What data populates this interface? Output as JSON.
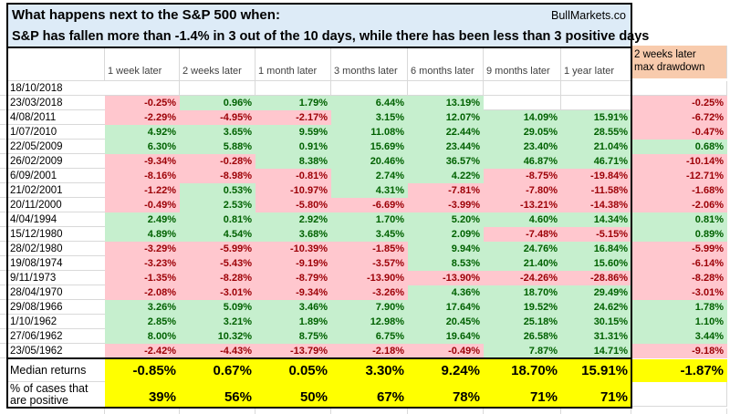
{
  "title": {
    "line1": "What happens next to the S&P 500 when:",
    "watermark": "BullMarkets.co",
    "line2": "S&P has fallen more than -1.4% in 3 out of the 10 days, while there has been less than 3 positive days"
  },
  "columns": [
    "1 week later",
    "2 weeks later",
    "1 month later",
    "3 months later",
    "6 months later",
    "9 months later",
    "1 year later"
  ],
  "drawdown_header": {
    "line1": "2 weeks later",
    "line2": "max drawdown"
  },
  "rows": [
    {
      "date": "18/10/2018",
      "values": [
        "",
        "",
        "",
        "",
        "",
        "",
        ""
      ],
      "drawdown": ""
    },
    {
      "date": "23/03/2018",
      "values": [
        "-0.25%",
        "0.96%",
        "1.79%",
        "6.44%",
        "13.19%",
        "",
        ""
      ],
      "drawdown": "-0.25%"
    },
    {
      "date": "4/08/2011",
      "values": [
        "-2.29%",
        "-4.95%",
        "-2.17%",
        "3.15%",
        "12.07%",
        "14.09%",
        "15.91%"
      ],
      "drawdown": "-6.72%"
    },
    {
      "date": "1/07/2010",
      "values": [
        "4.92%",
        "3.65%",
        "9.59%",
        "11.08%",
        "22.44%",
        "29.05%",
        "28.55%"
      ],
      "drawdown": "-0.47%"
    },
    {
      "date": "22/05/2009",
      "values": [
        "6.30%",
        "5.88%",
        "0.91%",
        "15.69%",
        "23.44%",
        "23.40%",
        "21.04%"
      ],
      "drawdown": "0.68%"
    },
    {
      "date": "26/02/2009",
      "values": [
        "-9.34%",
        "-0.28%",
        "8.38%",
        "20.46%",
        "36.57%",
        "46.87%",
        "46.71%"
      ],
      "drawdown": "-10.14%"
    },
    {
      "date": "6/09/2001",
      "values": [
        "-8.16%",
        "-8.98%",
        "-0.81%",
        "2.74%",
        "4.22%",
        "-8.75%",
        "-19.84%"
      ],
      "drawdown": "-12.71%"
    },
    {
      "date": "21/02/2001",
      "values": [
        "-1.22%",
        "0.53%",
        "-10.97%",
        "4.31%",
        "-7.81%",
        "-7.80%",
        "-11.58%"
      ],
      "drawdown": "-1.68%"
    },
    {
      "date": "20/11/2000",
      "values": [
        "-0.49%",
        "2.53%",
        "-5.80%",
        "-6.69%",
        "-3.99%",
        "-13.21%",
        "-14.38%"
      ],
      "drawdown": "-2.06%"
    },
    {
      "date": "4/04/1994",
      "values": [
        "2.49%",
        "0.81%",
        "2.92%",
        "1.70%",
        "5.20%",
        "4.60%",
        "14.34%"
      ],
      "drawdown": "0.81%"
    },
    {
      "date": "15/12/1980",
      "values": [
        "4.89%",
        "4.54%",
        "3.68%",
        "3.45%",
        "2.09%",
        "-7.48%",
        "-5.15%"
      ],
      "drawdown": "0.89%"
    },
    {
      "date": "28/02/1980",
      "values": [
        "-3.29%",
        "-5.99%",
        "-10.39%",
        "-1.85%",
        "9.94%",
        "24.76%",
        "16.84%"
      ],
      "drawdown": "-5.99%"
    },
    {
      "date": "19/08/1974",
      "values": [
        "-3.23%",
        "-5.43%",
        "-9.19%",
        "-3.57%",
        "8.53%",
        "21.40%",
        "15.60%"
      ],
      "drawdown": "-6.14%"
    },
    {
      "date": "9/11/1973",
      "values": [
        "-1.35%",
        "-8.28%",
        "-8.79%",
        "-13.90%",
        "-13.90%",
        "-24.26%",
        "-28.86%"
      ],
      "drawdown": "-8.28%"
    },
    {
      "date": "28/04/1970",
      "values": [
        "-2.08%",
        "-3.01%",
        "-9.34%",
        "-3.26%",
        "4.36%",
        "18.70%",
        "29.49%"
      ],
      "drawdown": "-3.01%"
    },
    {
      "date": "29/08/1966",
      "values": [
        "3.26%",
        "5.09%",
        "3.46%",
        "7.90%",
        "17.64%",
        "19.52%",
        "24.62%"
      ],
      "drawdown": "1.78%"
    },
    {
      "date": "1/10/1962",
      "values": [
        "2.85%",
        "3.21%",
        "1.89%",
        "12.98%",
        "20.45%",
        "25.18%",
        "30.15%"
      ],
      "drawdown": "1.10%"
    },
    {
      "date": "27/06/1962",
      "values": [
        "8.00%",
        "10.32%",
        "8.75%",
        "6.75%",
        "19.64%",
        "26.58%",
        "31.31%"
      ],
      "drawdown": "3.44%"
    },
    {
      "date": "23/05/1962",
      "values": [
        "-2.42%",
        "-4.43%",
        "-13.79%",
        "-2.18%",
        "-0.49%",
        "7.87%",
        "14.71%"
      ],
      "drawdown": "-9.18%"
    }
  ],
  "summary": {
    "median": {
      "label": "Median returns",
      "values": [
        "-0.85%",
        "0.67%",
        "0.05%",
        "3.30%",
        "9.24%",
        "18.70%",
        "15.91%"
      ],
      "drawdown": "-1.87%"
    },
    "percent_positive": {
      "label": "% of cases that are positive",
      "values": [
        "39%",
        "56%",
        "50%",
        "67%",
        "78%",
        "71%",
        "71%"
      ]
    }
  },
  "colors": {
    "title_bg": "#DDEBF7",
    "drawdown_header_bg": "#F8CBAD",
    "positive_bg": "#C6EFCE",
    "positive_text": "#006100",
    "negative_bg": "#FFC7CE",
    "negative_text": "#9C0006",
    "summary_bg": "#FFFF00",
    "gridline": "#D9D9D9",
    "border": "#000000"
  }
}
